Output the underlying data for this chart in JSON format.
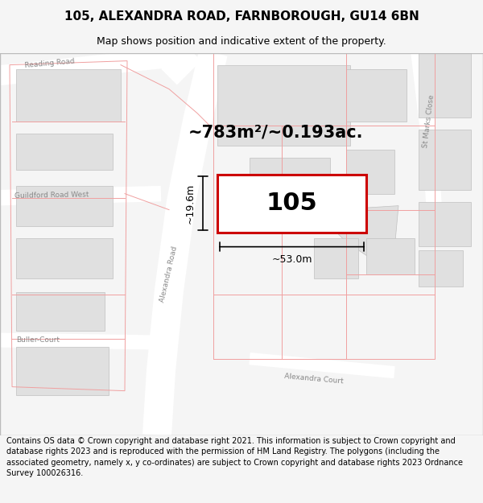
{
  "title_line1": "105, ALEXANDRA ROAD, FARNBOROUGH, GU14 6BN",
  "title_line2": "Map shows position and indicative extent of the property.",
  "footer_text": "Contains OS data © Crown copyright and database right 2021. This information is subject to Crown copyright and database rights 2023 and is reproduced with the permission of HM Land Registry. The polygons (including the associated geometry, namely x, y co-ordinates) are subject to Crown copyright and database rights 2023 Ordnance Survey 100026316.",
  "area_label": "~783m²/~0.193ac.",
  "property_number": "105",
  "dim_width": "~53.0m",
  "dim_height": "~19.6m",
  "bg_color": "#f5f5f5",
  "map_bg": "#f8f8f8",
  "road_color": "#ffffff",
  "building_fc": "#e0e0e0",
  "building_ec": "#c0c0c0",
  "prop_fill": "#ffffff",
  "prop_edge": "#cc0000",
  "pink_line": "#f0a0a0",
  "title_fs": 11,
  "subtitle_fs": 9,
  "footer_fs": 7.0,
  "label_fs": 6.5,
  "area_fs": 15,
  "prop_num_fs": 22,
  "dim_fs": 9
}
